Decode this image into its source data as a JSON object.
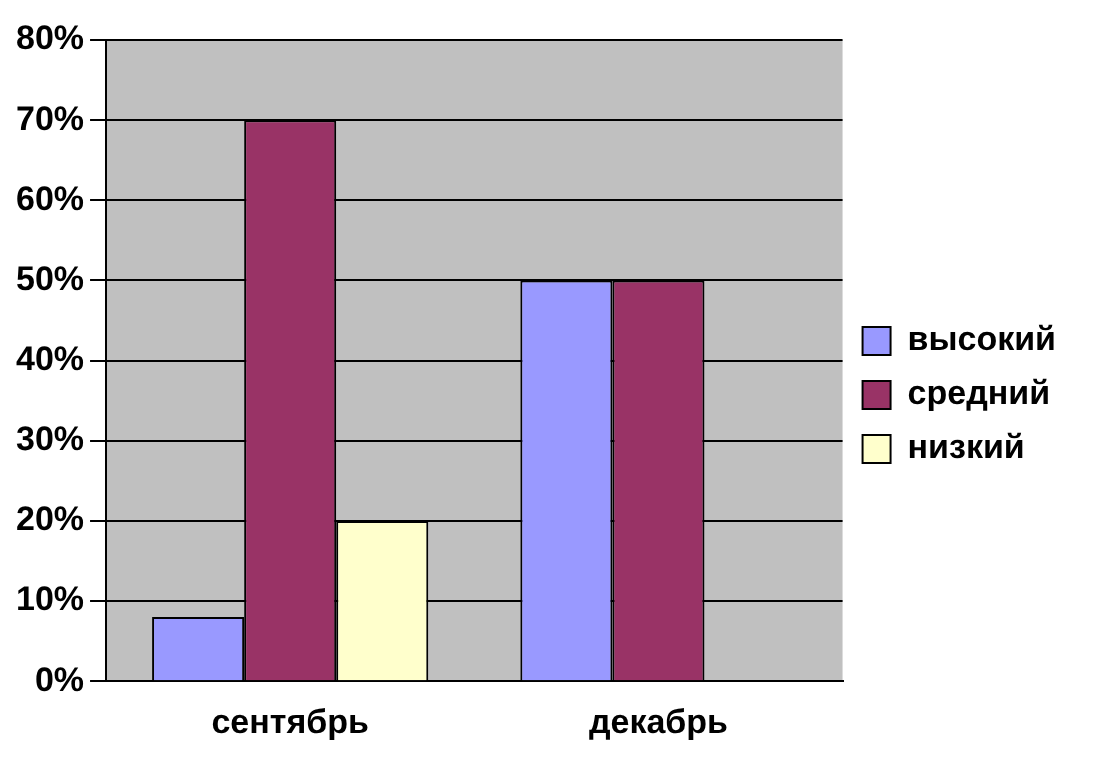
{
  "chart_data": {
    "type": "bar",
    "categories": [
      "сентябрь",
      "декабрь"
    ],
    "series": [
      {
        "name": "высокий",
        "color": "#9999ff",
        "values": [
          8,
          50
        ]
      },
      {
        "name": "средний",
        "color": "#993366",
        "values": [
          70,
          50
        ]
      },
      {
        "name": "низкий",
        "color": "#ffffcc",
        "values": [
          20,
          null
        ]
      }
    ],
    "ylim": [
      0,
      80
    ],
    "yticks": [
      {
        "value": 0,
        "label": "0%"
      },
      {
        "value": 10,
        "label": "10%"
      },
      {
        "value": 20,
        "label": "20%"
      },
      {
        "value": 30,
        "label": "30%"
      },
      {
        "value": 40,
        "label": "40%"
      },
      {
        "value": 50,
        "label": "50%"
      },
      {
        "value": 60,
        "label": "60%"
      },
      {
        "value": 70,
        "label": "70%"
      },
      {
        "value": 80,
        "label": "80%"
      }
    ],
    "grid": "y",
    "legend": "right"
  }
}
